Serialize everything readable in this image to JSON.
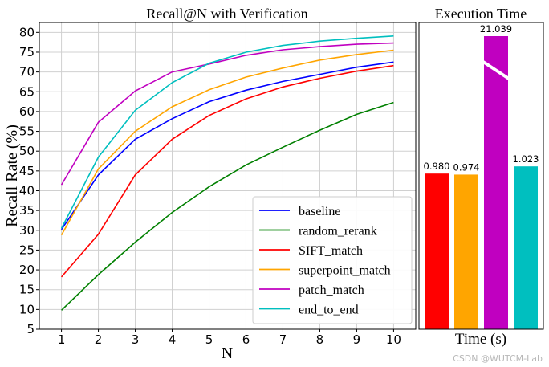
{
  "chart_data": [
    {
      "type": "line",
      "title": "Recall@N with Verification",
      "xlabel": "N",
      "ylabel": "Recall Rate (%)",
      "x": [
        1,
        2,
        3,
        4,
        5,
        6,
        7,
        8,
        9,
        10
      ],
      "xlim": [
        0.4,
        10.6
      ],
      "ylim": [
        5,
        82.5
      ],
      "yticks": [
        5,
        10,
        15,
        20,
        25,
        30,
        35,
        40,
        45,
        50,
        55,
        60,
        65,
        70,
        75,
        80
      ],
      "grid": true,
      "legend_position": "lower-right",
      "series": [
        {
          "name": "baseline",
          "color": "#0000ff",
          "values": [
            30.2,
            44.0,
            53.0,
            58.2,
            62.5,
            65.4,
            67.6,
            69.4,
            71.2,
            72.5
          ]
        },
        {
          "name": "random_rerank",
          "color": "#008000",
          "values": [
            9.8,
            18.8,
            27.0,
            34.5,
            41.0,
            46.5,
            51.0,
            55.3,
            59.3,
            62.3
          ]
        },
        {
          "name": "SIFT_match",
          "color": "#ff0000",
          "values": [
            18.2,
            29.0,
            44.0,
            53.0,
            59.0,
            63.2,
            66.2,
            68.4,
            70.2,
            71.6
          ]
        },
        {
          "name": "superpoint_match",
          "color": "#ffa500",
          "values": [
            28.8,
            45.5,
            55.0,
            61.2,
            65.5,
            68.7,
            71.0,
            73.0,
            74.4,
            75.5
          ]
        },
        {
          "name": "patch_match",
          "color": "#c000c0",
          "values": [
            41.5,
            57.3,
            65.2,
            70.0,
            72.0,
            74.2,
            75.6,
            76.4,
            77.0,
            77.3
          ]
        },
        {
          "name": "end_to_end",
          "color": "#00bfbf",
          "values": [
            30.5,
            48.5,
            60.3,
            67.3,
            72.2,
            75.0,
            76.7,
            77.8,
            78.5,
            79.1
          ]
        }
      ]
    },
    {
      "type": "bar",
      "title": "Execution Time",
      "xlabel": "Time (s)",
      "broken_axis": true,
      "bars": [
        {
          "label": "0.980",
          "value": 0.98,
          "color": "#ff0000"
        },
        {
          "label": "0.974",
          "value": 0.974,
          "color": "#ffa500"
        },
        {
          "label": "21.039",
          "value": 21.039,
          "color": "#c000c0"
        },
        {
          "label": "1.023",
          "value": 1.023,
          "color": "#00bfbf"
        }
      ]
    }
  ],
  "watermark": "CSDN @WUTCM-Lab"
}
